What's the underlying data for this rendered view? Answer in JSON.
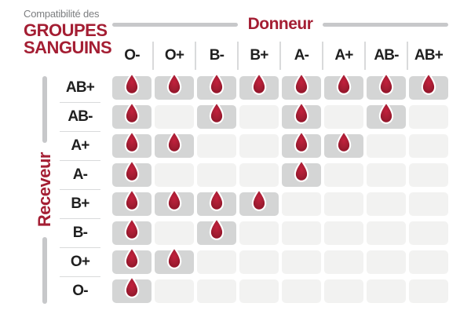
{
  "title": {
    "prefix": "Compatibilité des",
    "main_line1": "GROUPES",
    "main_line2": "SANGUINS"
  },
  "donor_axis": {
    "label": "Donneur"
  },
  "receiver_axis": {
    "label": "Receveur"
  },
  "chart_data": {
    "type": "heatmap",
    "title": "Compatibilité des GROUPES SANGUINS",
    "x_axis_label": "Donneur",
    "y_axis_label": "Receveur",
    "x_categories": [
      "O-",
      "O+",
      "B-",
      "B+",
      "A-",
      "A+",
      "AB-",
      "AB+"
    ],
    "y_categories": [
      "AB+",
      "AB-",
      "A+",
      "A-",
      "B+",
      "B-",
      "O+",
      "O-"
    ],
    "cell_symbol": "blood-drop-icon",
    "values_meaning": "1 = blood drop shown (donor compatible with receiver), 0 = empty cell",
    "matrix": [
      [
        1,
        1,
        1,
        1,
        1,
        1,
        1,
        1
      ],
      [
        1,
        0,
        1,
        0,
        1,
        0,
        1,
        0
      ],
      [
        1,
        1,
        0,
        0,
        1,
        1,
        0,
        0
      ],
      [
        1,
        0,
        0,
        0,
        1,
        0,
        0,
        0
      ],
      [
        1,
        1,
        1,
        1,
        0,
        0,
        0,
        0
      ],
      [
        1,
        0,
        1,
        0,
        0,
        0,
        0,
        0
      ],
      [
        1,
        1,
        0,
        0,
        0,
        0,
        0,
        0
      ],
      [
        1,
        0,
        0,
        0,
        0,
        0,
        0,
        0
      ]
    ]
  },
  "colors": {
    "accent_red": "#a41e33",
    "drop_center": "#c2203c",
    "drop_mid": "#a41e33",
    "drop_edge": "#8c1126",
    "drop_stroke": "#ffffff",
    "text_dark": "#1f1f1f",
    "text_gray": "#7c7e80",
    "bar_gray": "#c7c8ca",
    "separator_gray": "#d9dadb",
    "cell_filled": "#d4d5d5",
    "cell_empty": "#f2f2f1",
    "background": "#ffffff"
  }
}
